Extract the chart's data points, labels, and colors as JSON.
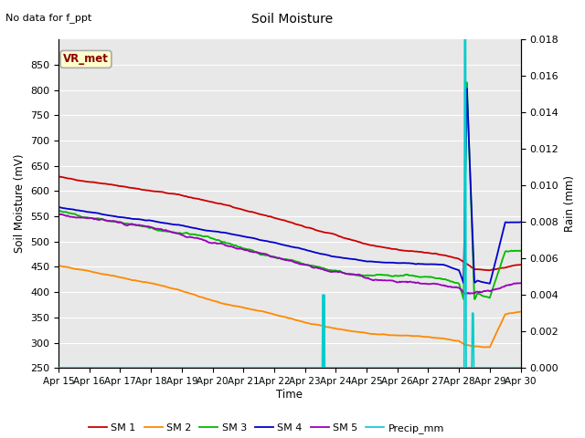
{
  "title": "Soil Moisture",
  "top_left_text": "No data for f_ppt",
  "annotation_box": "VR_met",
  "xlabel": "Time",
  "ylabel_left": "Soil Moisture (mV)",
  "ylabel_right": "Rain (mm)",
  "ylim_left": [
    250,
    900
  ],
  "ylim_right": [
    0.0,
    0.018
  ],
  "x_tick_labels": [
    "Apr 15",
    "Apr 16",
    "Apr 17",
    "Apr 18",
    "Apr 19",
    "Apr 20",
    "Apr 21",
    "Apr 22",
    "Apr 23",
    "Apr 24",
    "Apr 25",
    "Apr 26",
    "Apr 27",
    "Apr 28",
    "Apr 29",
    "Apr 30"
  ],
  "background_color": "#e8e8e8",
  "grid_color": "#ffffff",
  "colors": {
    "SM1": "#cc0000",
    "SM2": "#ff8800",
    "SM3": "#00bb00",
    "SM4": "#0000cc",
    "SM5": "#9900bb",
    "Precip": "#00cccc"
  },
  "legend_labels": [
    "SM 1",
    "SM 2",
    "SM 3",
    "SM 4",
    "SM 5",
    "Precip_mm"
  ]
}
